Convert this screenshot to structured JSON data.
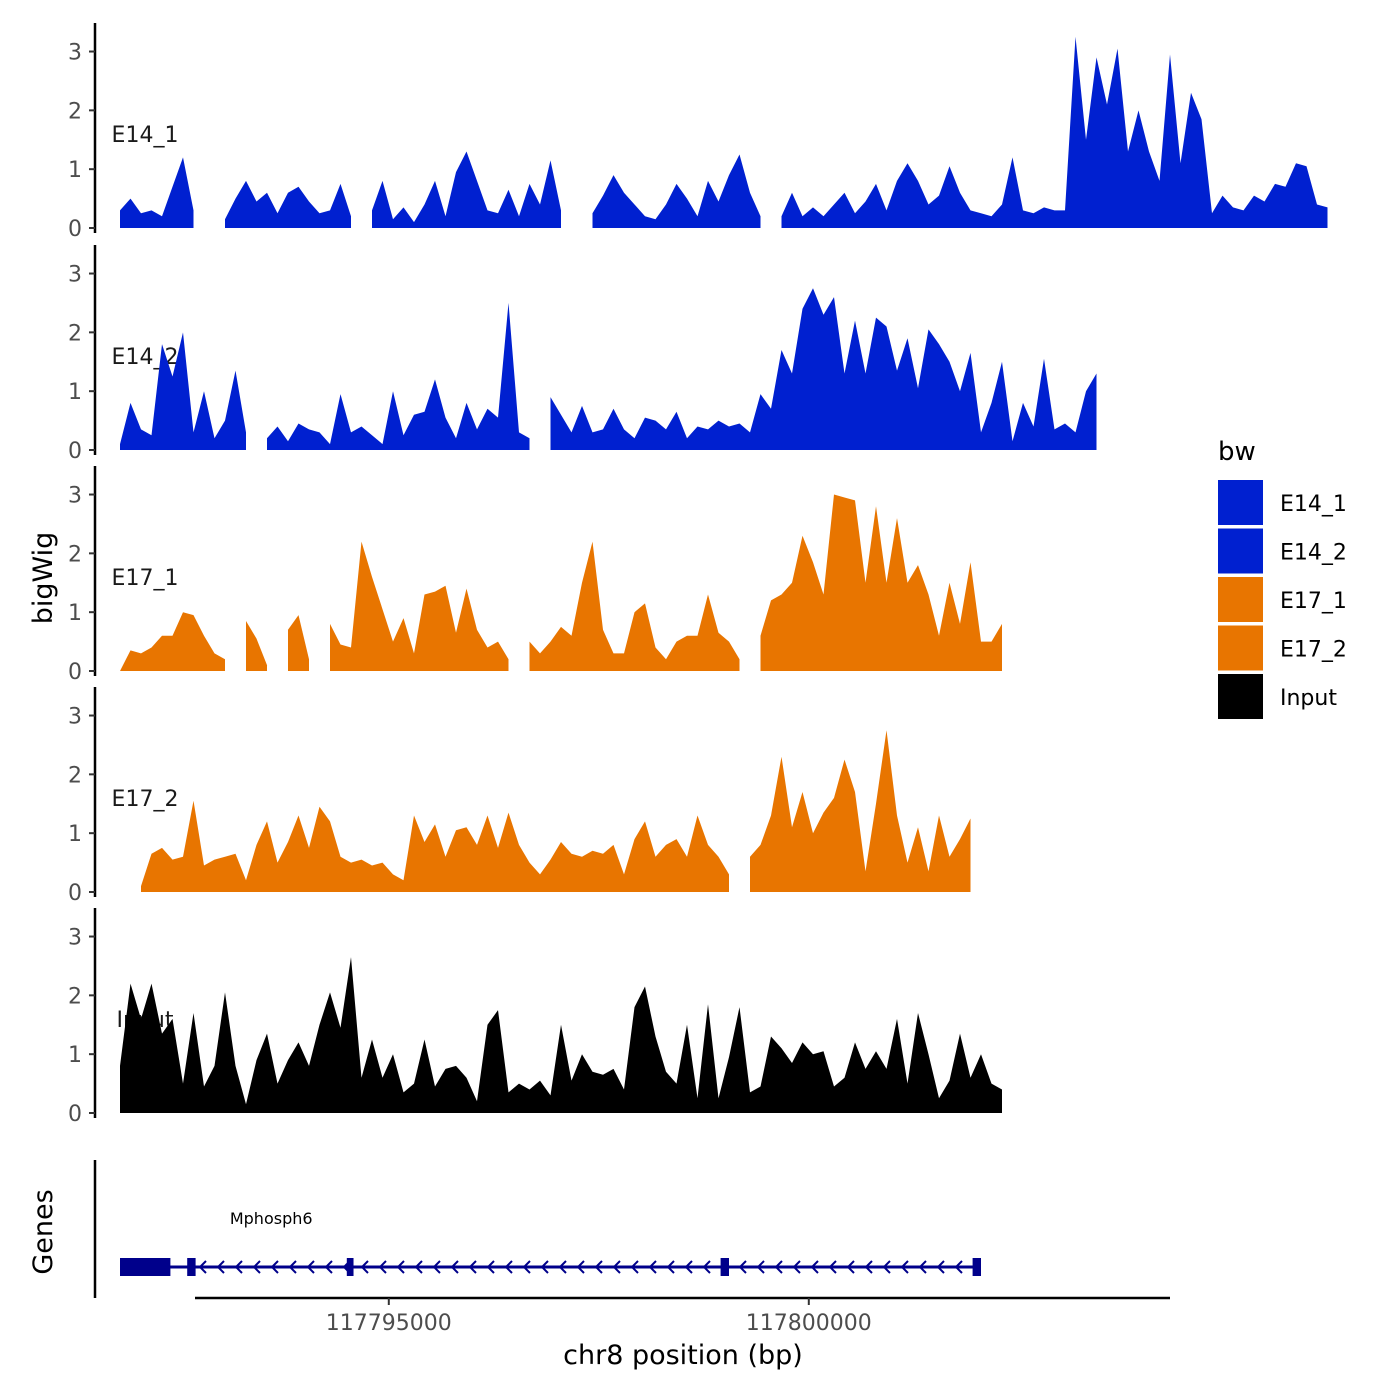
{
  "chart_data": {
    "type": "area",
    "chromosome": "chr8",
    "xlabel": "chr8 position (bp)",
    "ylabel": "bigWig",
    "genes_label": "Genes",
    "xlim": [
      117791800,
      117804300
    ],
    "x_ticks": [
      117795000,
      117800000
    ],
    "x_tick_labels": [
      "117795000",
      "117800000"
    ],
    "ylim": [
      0,
      3.4
    ],
    "y_ticks": [
      0,
      1,
      2,
      3
    ],
    "y_tick_labels": [
      "0",
      "1",
      "2",
      "3"
    ],
    "grid": false,
    "legend": {
      "title": "bw",
      "placement": "right",
      "entries": [
        {
          "label": "E14_1",
          "color": "#0020D0"
        },
        {
          "label": "E14_2",
          "color": "#0020D0"
        },
        {
          "label": "E17_1",
          "color": "#E87500"
        },
        {
          "label": "E17_2",
          "color": "#E87500"
        },
        {
          "label": "Input",
          "color": "#000000"
        }
      ]
    },
    "series": [
      {
        "name": "E14_1",
        "color": "#0020D0",
        "x_start": 117791800,
        "step": 125,
        "values": [
          0.3,
          0.5,
          0.25,
          0.3,
          0.2,
          0.7,
          1.2,
          0.3,
          null,
          null,
          0.15,
          0.5,
          0.8,
          0.45,
          0.6,
          0.25,
          0.6,
          0.7,
          0.45,
          0.25,
          0.3,
          0.75,
          0.2,
          null,
          0.3,
          0.8,
          0.15,
          0.35,
          0.1,
          0.4,
          0.8,
          0.2,
          0.95,
          1.3,
          0.8,
          0.3,
          0.25,
          0.65,
          0.2,
          0.75,
          0.4,
          1.15,
          0.3,
          null,
          null,
          0.25,
          0.55,
          0.9,
          0.6,
          0.4,
          0.2,
          0.15,
          0.4,
          0.75,
          0.5,
          0.2,
          0.8,
          0.45,
          0.9,
          1.25,
          0.6,
          0.2,
          null,
          0.2,
          0.6,
          0.2,
          0.35,
          0.2,
          0.4,
          0.6,
          0.25,
          0.45,
          0.75,
          0.3,
          0.8,
          1.1,
          0.8,
          0.4,
          0.55,
          1.05,
          0.6,
          0.3,
          0.25,
          0.2,
          0.4,
          1.2,
          0.3,
          0.25,
          0.35,
          0.3,
          0.3,
          3.25,
          1.5,
          2.9,
          2.1,
          3.05,
          1.3,
          2.0,
          1.3,
          0.8,
          2.95,
          1.1,
          2.3,
          1.85,
          0.25,
          0.55,
          0.35,
          0.3,
          0.55,
          0.45,
          0.75,
          0.7,
          1.1,
          1.05,
          0.4,
          0.35
        ]
      },
      {
        "name": "E14_2",
        "color": "#0020D0",
        "x_start": 117791800,
        "step": 125,
        "values": [
          0.1,
          0.8,
          0.35,
          0.25,
          1.8,
          1.25,
          2.0,
          0.3,
          1.0,
          0.2,
          0.5,
          1.35,
          0.3,
          null,
          0.2,
          0.4,
          0.15,
          0.45,
          0.35,
          0.3,
          0.1,
          0.95,
          0.3,
          0.4,
          0.25,
          0.1,
          1.0,
          0.25,
          0.6,
          0.65,
          1.2,
          0.55,
          0.2,
          0.8,
          0.35,
          0.7,
          0.55,
          2.5,
          0.3,
          0.2,
          null,
          0.9,
          0.6,
          0.3,
          0.75,
          0.3,
          0.35,
          0.7,
          0.35,
          0.2,
          0.55,
          0.5,
          0.35,
          0.65,
          0.2,
          0.4,
          0.35,
          0.5,
          0.4,
          0.45,
          0.3,
          0.95,
          0.7,
          1.7,
          1.3,
          2.4,
          2.75,
          2.3,
          2.6,
          1.3,
          2.2,
          1.3,
          2.25,
          2.1,
          1.35,
          1.9,
          1.05,
          2.05,
          1.8,
          1.5,
          1.0,
          1.65,
          0.3,
          0.8,
          1.5,
          0.15,
          0.8,
          0.4,
          1.55,
          0.35,
          0.45,
          0.3,
          1.0,
          1.3
        ]
      },
      {
        "name": "E17_1",
        "color": "#E87500",
        "x_start": 117791800,
        "step": 125,
        "values": [
          0.0,
          0.35,
          0.3,
          0.4,
          0.6,
          0.6,
          1.0,
          0.95,
          0.6,
          0.3,
          0.2,
          null,
          0.85,
          0.55,
          0.1,
          null,
          0.7,
          0.95,
          0.2,
          null,
          0.8,
          0.45,
          0.4,
          2.2,
          1.6,
          1.05,
          0.5,
          0.9,
          0.3,
          1.3,
          1.35,
          1.45,
          0.65,
          1.4,
          0.7,
          0.4,
          0.5,
          0.2,
          null,
          0.5,
          0.3,
          0.5,
          0.75,
          0.6,
          1.5,
          2.2,
          0.7,
          0.3,
          0.3,
          1.0,
          1.15,
          0.4,
          0.2,
          0.5,
          0.6,
          0.6,
          1.3,
          0.65,
          0.5,
          0.2,
          null,
          0.6,
          1.2,
          1.3,
          1.5,
          2.3,
          1.85,
          1.3,
          3.0,
          2.95,
          2.9,
          1.5,
          2.8,
          1.5,
          2.6,
          1.5,
          1.8,
          1.3,
          0.6,
          1.5,
          0.8,
          1.85,
          0.5,
          0.5,
          0.8
        ]
      },
      {
        "name": "E17_2",
        "color": "#E87500",
        "x_start": 117791800,
        "step": 125,
        "values": [
          0.05,
          null,
          0.1,
          0.65,
          0.75,
          0.55,
          0.6,
          1.55,
          0.45,
          0.55,
          0.6,
          0.65,
          0.2,
          0.8,
          1.2,
          0.5,
          0.85,
          1.3,
          0.75,
          1.45,
          1.2,
          0.6,
          0.5,
          0.55,
          0.45,
          0.5,
          0.3,
          0.2,
          1.3,
          0.85,
          1.15,
          0.6,
          1.05,
          1.1,
          0.8,
          1.3,
          0.75,
          1.35,
          0.8,
          0.5,
          0.3,
          0.55,
          0.85,
          0.65,
          0.6,
          0.7,
          0.65,
          0.8,
          0.3,
          0.9,
          1.2,
          0.6,
          0.8,
          0.9,
          0.6,
          1.3,
          0.8,
          0.6,
          0.3,
          null,
          0.6,
          0.8,
          1.3,
          2.3,
          1.1,
          1.7,
          1.0,
          1.35,
          1.6,
          2.25,
          1.7,
          0.35,
          1.5,
          2.75,
          1.3,
          0.5,
          1.1,
          0.35,
          1.3,
          0.6,
          0.9,
          1.25
        ]
      },
      {
        "name": "Input",
        "color": "#000000",
        "x_start": 117791800,
        "step": 125,
        "values": [
          0.8,
          2.2,
          1.6,
          2.2,
          1.35,
          1.6,
          0.5,
          1.7,
          0.45,
          0.8,
          2.05,
          0.8,
          0.15,
          0.9,
          1.35,
          0.5,
          0.9,
          1.2,
          0.8,
          1.5,
          2.05,
          1.45,
          2.65,
          0.6,
          1.25,
          0.6,
          1.0,
          0.35,
          0.5,
          1.25,
          0.45,
          0.75,
          0.8,
          0.6,
          0.2,
          1.5,
          1.75,
          0.35,
          0.5,
          0.4,
          0.55,
          0.3,
          1.5,
          0.55,
          1.0,
          0.7,
          0.65,
          0.75,
          0.4,
          1.8,
          2.15,
          1.3,
          0.7,
          0.5,
          1.5,
          0.25,
          1.85,
          0.25,
          0.95,
          1.8,
          0.35,
          0.45,
          1.3,
          1.1,
          0.85,
          1.2,
          1.0,
          1.05,
          0.45,
          0.6,
          1.2,
          0.75,
          1.05,
          0.75,
          1.6,
          0.5,
          1.7,
          1.0,
          0.25,
          0.55,
          1.35,
          0.6,
          1.0,
          0.5,
          0.4
        ]
      }
    ],
    "gene": {
      "name": "Mphosph6",
      "strand": "-",
      "start": 117791800,
      "end": 117802050,
      "color": "#00008B",
      "thick_exons": [
        [
          117791800,
          117792400
        ]
      ],
      "exons": [
        [
          117792600,
          117792700
        ],
        [
          117794500,
          117794580
        ],
        [
          117798950,
          117799050
        ],
        [
          117801950,
          117802050
        ]
      ]
    }
  }
}
